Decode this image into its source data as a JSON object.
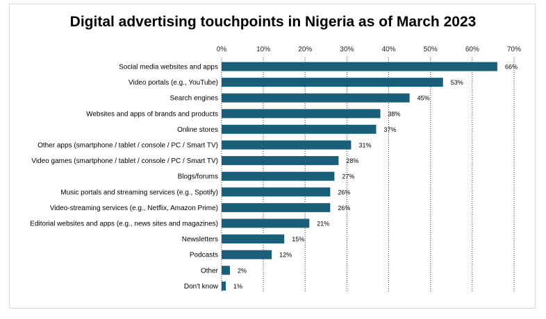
{
  "chart_data": {
    "type": "bar",
    "orientation": "horizontal",
    "title": "Digital advertising touchpoints in Nigeria as of March 2023",
    "xlabel": "",
    "ylabel": "",
    "xlim": [
      0,
      70
    ],
    "x_ticks": [
      "0%",
      "10%",
      "20%",
      "30%",
      "40%",
      "50%",
      "60%",
      "70%"
    ],
    "x_tick_values": [
      0,
      10,
      20,
      30,
      40,
      50,
      60,
      70
    ],
    "axis_position": "top",
    "grid": "vertical dotted",
    "legend": "none",
    "bar_color": "#1a5f7a",
    "categories": [
      "Social media websites and apps",
      "Video portals (e.g., YouTube)",
      "Search engines",
      "Websites and apps of brands and products",
      "Online stores",
      "Other apps (smartphone / tablet / console / PC / Smart TV)",
      "Video games (smartphone / tablet / console / PC / Smart TV)",
      "Blogs/forums",
      "Music portals and streaming services (e.g., Spotify)",
      "Video-streaming services (e.g., Netflix, Amazon Prime)",
      "Editorial websites and apps (e.g., news sites and magazines)",
      "Newsletters",
      "Podcasts",
      "Other",
      "Don't know"
    ],
    "values": [
      66,
      53,
      45,
      38,
      37,
      31,
      28,
      27,
      26,
      26,
      21,
      15,
      12,
      2,
      1
    ],
    "data_labels": [
      "66%",
      "53%",
      "45%",
      "38%",
      "37%",
      "31%",
      "28%",
      "27%",
      "26%",
      "26%",
      "21%",
      "15%",
      "12%",
      "2%",
      "1%"
    ]
  }
}
